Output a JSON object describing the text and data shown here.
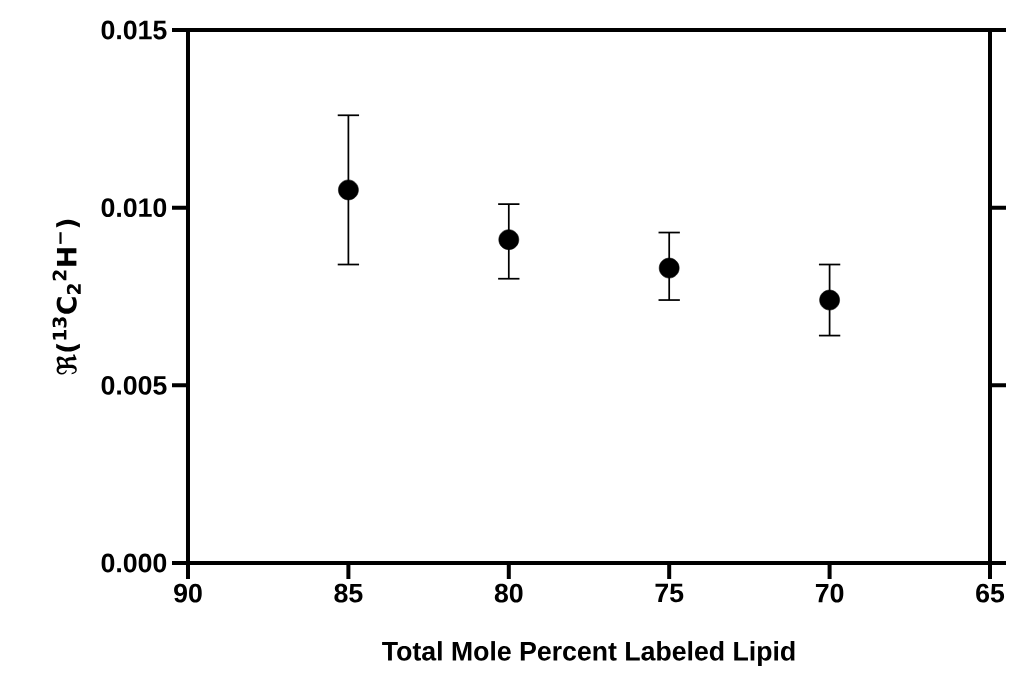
{
  "chart_data": {
    "type": "scatter",
    "xlabel": "Total Mole Percent Labeled Lipid",
    "ylabel": "ℜ($^{13}$C$_{2}$$^{2}$H$^{−}$)",
    "x": [
      85,
      80,
      75,
      70
    ],
    "values": [
      0.0105,
      0.0091,
      0.0083,
      0.0074
    ],
    "errors": [
      [
        0.0084,
        0.0126
      ],
      [
        0.008,
        0.0101
      ],
      [
        0.0074,
        0.0093
      ],
      [
        0.0064,
        0.0084
      ]
    ],
    "color": "#000000",
    "marker": "circle",
    "xlim": [
      90,
      65
    ],
    "ylim": [
      0,
      0.015
    ],
    "xticks": [
      90,
      85,
      80,
      75,
      70,
      65
    ],
    "yticks": [
      {
        "value": 0,
        "label": "0.000"
      },
      {
        "value": 0.005,
        "label": "0.005"
      },
      {
        "value": 0.01,
        "label": "0.010"
      },
      {
        "value": 0.015,
        "label": "0.015"
      }
    ]
  }
}
